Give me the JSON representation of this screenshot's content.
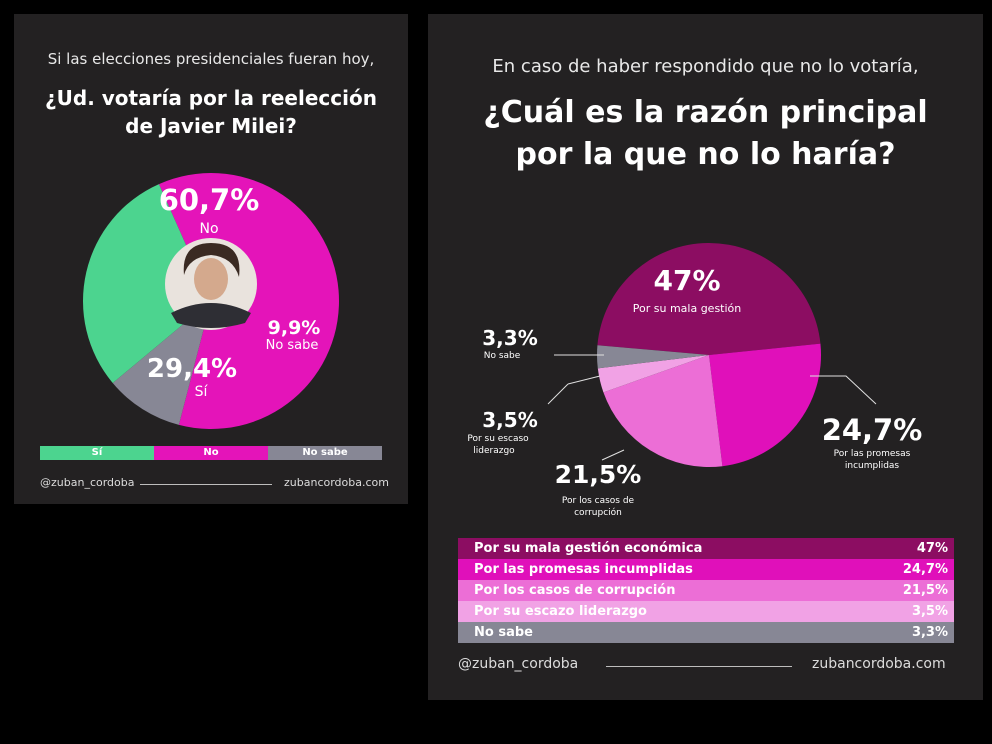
{
  "colors": {
    "si": "#4cd48f",
    "no": "#e414b9",
    "no_sabe": "#878795",
    "mala_gestion": "#8c0d62",
    "promesas": "#e010ba",
    "corrupcion": "#ec6ed6",
    "liderazgo": "#f1a2e5",
    "bg": "#232122"
  },
  "left_panel": {
    "subtitle": "Si las elecciones presidenciales fueran hoy,",
    "title_line1": "¿Ud. votaría por la reelección",
    "title_line2": "de Javier Milei?",
    "legend": [
      "Sí",
      "No",
      "No sabe"
    ],
    "footer_handle": "@zuban_cordoba",
    "footer_site": "zubancordoba.com"
  },
  "right_panel": {
    "subtitle": "En caso de haber respondido que no lo votaría,",
    "title_line1": "¿Cuál es la razón principal",
    "title_line2": "por la que no lo haría?",
    "table": [
      {
        "label": "Por su mala gestión económica",
        "value": "47%"
      },
      {
        "label": "Por las promesas incumplidas",
        "value": "24,7%"
      },
      {
        "label": "Por los casos de corrupción",
        "value": "21,5%"
      },
      {
        "label": "Por su escazo liderazgo",
        "value": "3,5%"
      },
      {
        "label": "No sabe",
        "value": "3,3%"
      }
    ],
    "footer_handle": "@zuban_cordoba",
    "footer_site": "zubancordoba.com"
  },
  "chart_data": [
    {
      "type": "pie",
      "title": "¿Ud. votaría por la reelección de Javier Milei?",
      "categories": [
        "No",
        "No sabe",
        "Sí"
      ],
      "values": [
        60.7,
        9.9,
        29.4
      ],
      "value_labels": [
        "60,7%",
        "9,9%",
        "29,4%"
      ]
    },
    {
      "type": "pie",
      "title": "¿Cuál es la razón principal por la que no lo haría?",
      "categories": [
        "Por su mala gestión",
        "Por las promesas incumplidas",
        "Por los casos de corrupción",
        "Por su escazo liderazgo",
        "No sabe"
      ],
      "values": [
        47,
        24.7,
        21.5,
        3.5,
        3.3
      ],
      "value_labels": [
        "47%",
        "24,7%",
        "21,5%",
        "3,5%",
        "3,3%"
      ]
    }
  ]
}
